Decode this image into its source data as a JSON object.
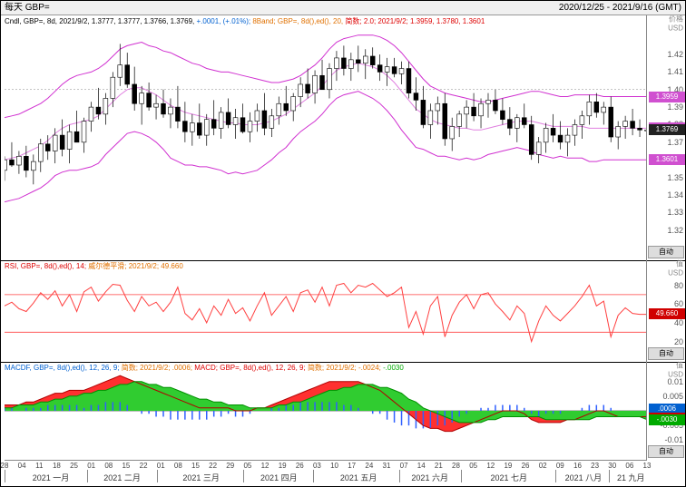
{
  "title_left": "每天 GBP=",
  "title_right": "2020/12/25 - 2021/9/16 (GMT)",
  "x_axis": {
    "days": [
      "28",
      "04",
      "11",
      "18",
      "25",
      "01",
      "08",
      "15",
      "22",
      "01",
      "08",
      "15",
      "22",
      "29",
      "05",
      "12",
      "19",
      "26",
      "03",
      "10",
      "17",
      "24",
      "31",
      "07",
      "14",
      "21",
      "28",
      "05",
      "12",
      "19",
      "26",
      "02",
      "09",
      "16",
      "23",
      "30",
      "06",
      "13"
    ],
    "months": [
      "2021 一月",
      "2021 二月",
      "2021 三月",
      "2021 四月",
      "2021 五月",
      "2021 六月",
      "2021 七月",
      "2021 八月",
      "21 九月"
    ],
    "month_positions": [
      0.072,
      0.183,
      0.306,
      0.427,
      0.551,
      0.662,
      0.785,
      0.901,
      0.975
    ],
    "month_seps": [
      0.0,
      0.128,
      0.237,
      0.372,
      0.48,
      0.615,
      0.71,
      0.858,
      0.94
    ]
  },
  "price_panel": {
    "info_spans": [
      {
        "cls": "s-black",
        "t": "Cndl, GBP=, 8d, 2021/9/2, 1.3777, 1.3777, 1.3766, 1.3769, "
      },
      {
        "cls": "s-blue",
        "t": "+.0001, (+.01%);"
      },
      {
        "cls": "s-orange",
        "t": " 8Band; GBP=, 8d(),ed(), 20, "
      },
      {
        "cls": "s-red",
        "t": "简数; 2.0; 2021/9/2; 1.3959, 1.3780, 1.3601"
      }
    ],
    "axis_label_top": "价格",
    "axis_label_sub": "USD",
    "ylim": [
      1.31,
      1.435
    ],
    "y_ticks": [
      1.32,
      1.33,
      1.34,
      1.35,
      1.36,
      1.37,
      1.38,
      1.39,
      1.4,
      1.41,
      1.42
    ],
    "y_dotted": 1.4,
    "markers": [
      {
        "v": 1.3959,
        "bg": "#d050d0",
        "txt": "1.3959"
      },
      {
        "v": 1.378,
        "bg": "#d050d0",
        "txt": "1.3780"
      },
      {
        "v": 1.3769,
        "bg": "#222222",
        "txt": "1.3769"
      },
      {
        "v": 1.3601,
        "bg": "#d050d0",
        "txt": "1.3601"
      }
    ],
    "band_color": "#d030d0",
    "mid_color": "#e080e0",
    "upper": [
      1.384,
      1.385,
      1.386,
      1.388,
      1.39,
      1.392,
      1.395,
      1.399,
      1.403,
      1.406,
      1.408,
      1.409,
      1.41,
      1.412,
      1.415,
      1.419,
      1.423,
      1.425,
      1.426,
      1.427,
      1.425,
      1.424,
      1.422,
      1.421,
      1.419,
      1.417,
      1.415,
      1.414,
      1.412,
      1.411,
      1.41,
      1.41,
      1.409,
      1.408,
      1.407,
      1.406,
      1.405,
      1.404,
      1.404,
      1.405,
      1.406,
      1.408,
      1.411,
      1.414,
      1.418,
      1.423,
      1.427,
      1.429,
      1.43,
      1.431,
      1.431,
      1.431,
      1.43,
      1.428,
      1.425,
      1.421,
      1.416,
      1.411,
      1.406,
      1.402,
      1.4,
      1.398,
      1.397,
      1.396,
      1.395,
      1.394,
      1.393,
      1.393,
      1.394,
      1.395,
      1.396,
      1.397,
      1.398,
      1.399,
      1.399,
      1.398,
      1.397,
      1.396,
      1.396,
      1.397,
      1.397,
      1.397,
      1.397,
      1.396,
      1.396,
      1.396,
      1.396,
      1.396,
      1.396,
      1.396
    ],
    "mid": [
      1.36,
      1.361,
      1.362,
      1.364,
      1.366,
      1.368,
      1.371,
      1.375,
      1.378,
      1.38,
      1.381,
      1.382,
      1.383,
      1.385,
      1.389,
      1.393,
      1.397,
      1.4,
      1.401,
      1.401,
      1.399,
      1.397,
      1.394,
      1.391,
      1.389,
      1.387,
      1.386,
      1.385,
      1.384,
      1.383,
      1.382,
      1.381,
      1.381,
      1.38,
      1.38,
      1.38,
      1.381,
      1.382,
      1.384,
      1.386,
      1.389,
      1.392,
      1.395,
      1.398,
      1.402,
      1.407,
      1.411,
      1.413,
      1.414,
      1.415,
      1.414,
      1.413,
      1.411,
      1.408,
      1.404,
      1.399,
      1.394,
      1.389,
      1.386,
      1.383,
      1.381,
      1.38,
      1.379,
      1.378,
      1.378,
      1.377,
      1.377,
      1.378,
      1.379,
      1.38,
      1.381,
      1.382,
      1.382,
      1.382,
      1.381,
      1.38,
      1.379,
      1.379,
      1.379,
      1.379,
      1.379,
      1.378,
      1.378,
      1.378,
      1.378,
      1.378,
      1.378,
      1.378,
      1.378,
      1.378
    ],
    "lower": [
      1.336,
      1.337,
      1.338,
      1.34,
      1.342,
      1.344,
      1.347,
      1.351,
      1.353,
      1.354,
      1.354,
      1.355,
      1.356,
      1.358,
      1.363,
      1.367,
      1.371,
      1.375,
      1.376,
      1.375,
      1.373,
      1.37,
      1.366,
      1.361,
      1.359,
      1.357,
      1.357,
      1.356,
      1.356,
      1.355,
      1.354,
      1.352,
      1.353,
      1.352,
      1.353,
      1.354,
      1.357,
      1.36,
      1.364,
      1.367,
      1.372,
      1.376,
      1.379,
      1.382,
      1.386,
      1.391,
      1.395,
      1.397,
      1.398,
      1.399,
      1.397,
      1.395,
      1.392,
      1.388,
      1.383,
      1.377,
      1.372,
      1.367,
      1.366,
      1.364,
      1.362,
      1.362,
      1.361,
      1.36,
      1.361,
      1.36,
      1.361,
      1.363,
      1.364,
      1.365,
      1.366,
      1.367,
      1.366,
      1.365,
      1.363,
      1.362,
      1.361,
      1.362,
      1.361,
      1.361,
      1.361,
      1.359,
      1.359,
      1.36,
      1.36,
      1.36,
      1.36,
      1.36,
      1.36,
      1.36
    ],
    "candles_ohlc": [
      [
        1.354,
        1.362,
        1.348,
        1.36
      ],
      [
        1.36,
        1.37,
        1.356,
        1.357
      ],
      [
        1.357,
        1.365,
        1.352,
        1.362
      ],
      [
        1.362,
        1.368,
        1.35,
        1.354
      ],
      [
        1.354,
        1.363,
        1.346,
        1.359
      ],
      [
        1.359,
        1.372,
        1.353,
        1.369
      ],
      [
        1.369,
        1.374,
        1.36,
        1.365
      ],
      [
        1.365,
        1.378,
        1.358,
        1.374
      ],
      [
        1.374,
        1.383,
        1.362,
        1.366
      ],
      [
        1.366,
        1.38,
        1.358,
        1.376
      ],
      [
        1.376,
        1.388,
        1.37,
        1.37
      ],
      [
        1.37,
        1.384,
        1.364,
        1.382
      ],
      [
        1.382,
        1.393,
        1.376,
        1.39
      ],
      [
        1.39,
        1.401,
        1.383,
        1.386
      ],
      [
        1.386,
        1.398,
        1.38,
        1.395
      ],
      [
        1.395,
        1.41,
        1.39,
        1.407
      ],
      [
        1.407,
        1.426,
        1.402,
        1.414
      ],
      [
        1.414,
        1.421,
        1.401,
        1.403
      ],
      [
        1.403,
        1.413,
        1.388,
        1.392
      ],
      [
        1.392,
        1.402,
        1.38,
        1.398
      ],
      [
        1.398,
        1.404,
        1.388,
        1.39
      ],
      [
        1.39,
        1.397,
        1.383,
        1.392
      ],
      [
        1.392,
        1.4,
        1.384,
        1.386
      ],
      [
        1.386,
        1.395,
        1.378,
        1.39
      ],
      [
        1.39,
        1.402,
        1.378,
        1.382
      ],
      [
        1.382,
        1.393,
        1.37,
        1.376
      ],
      [
        1.376,
        1.386,
        1.368,
        1.381
      ],
      [
        1.381,
        1.392,
        1.372,
        1.374
      ],
      [
        1.374,
        1.386,
        1.368,
        1.383
      ],
      [
        1.383,
        1.394,
        1.374,
        1.378
      ],
      [
        1.378,
        1.39,
        1.372,
        1.387
      ],
      [
        1.387,
        1.395,
        1.378,
        1.38
      ],
      [
        1.38,
        1.389,
        1.372,
        1.384
      ],
      [
        1.384,
        1.392,
        1.375,
        1.376
      ],
      [
        1.376,
        1.387,
        1.37,
        1.382
      ],
      [
        1.382,
        1.392,
        1.376,
        1.388
      ],
      [
        1.388,
        1.398,
        1.374,
        1.378
      ],
      [
        1.378,
        1.389,
        1.373,
        1.385
      ],
      [
        1.385,
        1.396,
        1.38,
        1.392
      ],
      [
        1.392,
        1.402,
        1.385,
        1.388
      ],
      [
        1.388,
        1.398,
        1.382,
        1.396
      ],
      [
        1.396,
        1.407,
        1.39,
        1.403
      ],
      [
        1.403,
        1.412,
        1.395,
        1.398
      ],
      [
        1.398,
        1.411,
        1.392,
        1.408
      ],
      [
        1.408,
        1.417,
        1.4,
        1.4
      ],
      [
        1.4,
        1.415,
        1.395,
        1.412
      ],
      [
        1.412,
        1.422,
        1.405,
        1.418
      ],
      [
        1.418,
        1.425,
        1.408,
        1.412
      ],
      [
        1.412,
        1.421,
        1.405,
        1.417
      ],
      [
        1.417,
        1.425,
        1.41,
        1.415
      ],
      [
        1.415,
        1.423,
        1.406,
        1.419
      ],
      [
        1.419,
        1.424,
        1.412,
        1.414
      ],
      [
        1.414,
        1.42,
        1.405,
        1.41
      ],
      [
        1.41,
        1.418,
        1.402,
        1.413
      ],
      [
        1.413,
        1.418,
        1.407,
        1.409
      ],
      [
        1.409,
        1.416,
        1.403,
        1.412
      ],
      [
        1.412,
        1.416,
        1.395,
        1.398
      ],
      [
        1.398,
        1.407,
        1.388,
        1.394
      ],
      [
        1.394,
        1.402,
        1.378,
        1.38
      ],
      [
        1.38,
        1.392,
        1.372,
        1.388
      ],
      [
        1.388,
        1.396,
        1.38,
        1.392
      ],
      [
        1.392,
        1.398,
        1.368,
        1.372
      ],
      [
        1.372,
        1.384,
        1.365,
        1.379
      ],
      [
        1.379,
        1.388,
        1.373,
        1.386
      ],
      [
        1.386,
        1.394,
        1.378,
        1.39
      ],
      [
        1.39,
        1.398,
        1.382,
        1.385
      ],
      [
        1.385,
        1.395,
        1.378,
        1.392
      ],
      [
        1.392,
        1.398,
        1.384,
        1.394
      ],
      [
        1.394,
        1.4,
        1.386,
        1.388
      ],
      [
        1.388,
        1.395,
        1.38,
        1.383
      ],
      [
        1.383,
        1.39,
        1.374,
        1.378
      ],
      [
        1.378,
        1.386,
        1.37,
        1.384
      ],
      [
        1.384,
        1.392,
        1.378,
        1.38
      ],
      [
        1.38,
        1.385,
        1.36,
        1.363
      ],
      [
        1.363,
        1.373,
        1.358,
        1.37
      ],
      [
        1.37,
        1.381,
        1.364,
        1.378
      ],
      [
        1.378,
        1.386,
        1.37,
        1.374
      ],
      [
        1.374,
        1.382,
        1.366,
        1.37
      ],
      [
        1.37,
        1.378,
        1.362,
        1.374
      ],
      [
        1.374,
        1.383,
        1.368,
        1.38
      ],
      [
        1.38,
        1.388,
        1.372,
        1.385
      ],
      [
        1.385,
        1.397,
        1.38,
        1.393
      ],
      [
        1.393,
        1.398,
        1.384,
        1.387
      ],
      [
        1.387,
        1.393,
        1.38,
        1.39
      ],
      [
        1.39,
        1.396,
        1.37,
        1.373
      ],
      [
        1.373,
        1.382,
        1.366,
        1.379
      ],
      [
        1.379,
        1.385,
        1.372,
        1.382
      ],
      [
        1.382,
        1.389,
        1.374,
        1.378
      ],
      [
        1.378,
        1.383,
        1.373,
        1.377
      ],
      [
        1.377,
        1.378,
        1.376,
        1.377
      ]
    ]
  },
  "rsi_panel": {
    "info_spans": [
      {
        "cls": "s-red",
        "t": "RSI, GBP=, 8d(),ed(), 14; "
      },
      {
        "cls": "s-orange",
        "t": "威尔德平滑; 2021/9/2; 49.660"
      }
    ],
    "axis_label_top": "值",
    "axis_label_sub": "USD",
    "ylim": [
      10,
      95
    ],
    "y_ticks": [
      20,
      40,
      60,
      80
    ],
    "h_lines": [
      30,
      70
    ],
    "marker": {
      "v": 49.66,
      "bg": "#d00000",
      "txt": "49.660"
    },
    "line_color": "#ff4040",
    "series": [
      58,
      62,
      55,
      52,
      61,
      72,
      65,
      74,
      58,
      70,
      52,
      73,
      78,
      63,
      73,
      81,
      80,
      64,
      52,
      68,
      58,
      62,
      52,
      62,
      78,
      50,
      43,
      55,
      40,
      58,
      48,
      65,
      50,
      56,
      42,
      58,
      72,
      48,
      58,
      68,
      52,
      72,
      75,
      62,
      78,
      58,
      80,
      82,
      72,
      80,
      78,
      82,
      75,
      68,
      72,
      78,
      35,
      52,
      28,
      58,
      68,
      25,
      48,
      62,
      70,
      55,
      70,
      72,
      60,
      52,
      43,
      58,
      50,
      20,
      42,
      58,
      48,
      42,
      50,
      58,
      68,
      80,
      58,
      63,
      25,
      48,
      56,
      50,
      49,
      49
    ]
  },
  "macd_panel": {
    "info_spans": [
      {
        "cls": "s-blue",
        "t": "MACDF, GBP=, 8d(),ed(), 12, 26, 9; "
      },
      {
        "cls": "s-orange",
        "t": "简数; 2021/9/2; .0006;  "
      },
      {
        "cls": "s-red",
        "t": "MACD; GBP=, 8d(),ed(), 12, 26, 9;  "
      },
      {
        "cls": "s-orange",
        "t": "简数; 2021/9/2; -.0024; "
      },
      {
        "cls": "s-green",
        "t": "-.0030"
      }
    ],
    "axis_label_top": "值",
    "axis_label_sub": "USD",
    "ylim": [
      -0.013,
      0.013
    ],
    "y_ticks": [
      -0.01,
      -0.005,
      0,
      0.005,
      0.01
    ],
    "markers": [
      {
        "v": 0.0006,
        "bg": "#0060d0",
        "txt": ".0006"
      },
      {
        "v": -0.0024,
        "bg": "#d00000",
        "txt": "-.0024"
      },
      {
        "v": -0.003,
        "bg": "#00aa00",
        "txt": "-.0030"
      }
    ],
    "macd_color": "#ff3030",
    "signal_color": "#30cc30",
    "hist_color": "#3060ff",
    "macd": [
      0.002,
      0.002,
      0.002,
      0.003,
      0.003,
      0.004,
      0.005,
      0.006,
      0.006,
      0.007,
      0.007,
      0.007,
      0.008,
      0.009,
      0.01,
      0.011,
      0.012,
      0.011,
      0.01,
      0.009,
      0.008,
      0.007,
      0.006,
      0.005,
      0.004,
      0.003,
      0.002,
      0.001,
      0.001,
      0.001,
      0.001,
      0.001,
      0.0,
      0.0,
      0.0,
      0.001,
      0.001,
      0.002,
      0.003,
      0.004,
      0.005,
      0.006,
      0.007,
      0.008,
      0.009,
      0.01,
      0.01,
      0.01,
      0.01,
      0.01,
      0.009,
      0.008,
      0.007,
      0.005,
      0.003,
      0.001,
      -0.001,
      -0.003,
      -0.005,
      -0.006,
      -0.006,
      -0.007,
      -0.007,
      -0.006,
      -0.005,
      -0.004,
      -0.003,
      -0.002,
      -0.001,
      0.0,
      0.0,
      0.0,
      -0.001,
      -0.003,
      -0.004,
      -0.004,
      -0.004,
      -0.004,
      -0.003,
      -0.003,
      -0.002,
      -0.001,
      0.0,
      0.0,
      -0.001,
      -0.002,
      -0.002,
      -0.002,
      -0.002,
      -0.002
    ],
    "signal": [
      0.001,
      0.001,
      0.002,
      0.002,
      0.002,
      0.003,
      0.003,
      0.004,
      0.004,
      0.005,
      0.005,
      0.006,
      0.006,
      0.007,
      0.007,
      0.008,
      0.009,
      0.009,
      0.01,
      0.01,
      0.009,
      0.009,
      0.008,
      0.008,
      0.007,
      0.006,
      0.005,
      0.004,
      0.004,
      0.003,
      0.003,
      0.002,
      0.002,
      0.002,
      0.001,
      0.001,
      0.001,
      0.001,
      0.002,
      0.002,
      0.003,
      0.003,
      0.004,
      0.005,
      0.006,
      0.007,
      0.007,
      0.008,
      0.008,
      0.009,
      0.009,
      0.009,
      0.008,
      0.008,
      0.007,
      0.006,
      0.004,
      0.003,
      0.001,
      0.0,
      -0.001,
      -0.002,
      -0.003,
      -0.004,
      -0.004,
      -0.004,
      -0.004,
      -0.003,
      -0.003,
      -0.002,
      -0.002,
      -0.002,
      -0.002,
      -0.002,
      -0.002,
      -0.003,
      -0.003,
      -0.003,
      -0.003,
      -0.003,
      -0.003,
      -0.003,
      -0.002,
      -0.002,
      -0.002,
      -0.002,
      -0.002,
      -0.002,
      -0.002,
      -0.003
    ]
  },
  "auto_label": "自动"
}
